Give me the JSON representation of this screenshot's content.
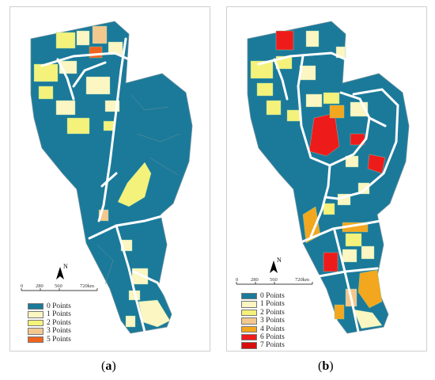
{
  "colors": {
    "c0": "#1b7a9a",
    "c1": "#fbf6c2",
    "c2": "#f4f27a",
    "c3": "#f2c88e",
    "c4": "#f2a71e",
    "c5": "#f0631c",
    "c6": "#ee1b1b",
    "c7": "#d70e0e",
    "road": "#ffffff",
    "outline": "#6d8f9c"
  },
  "panels": [
    {
      "caption_open": "(",
      "caption_letter": "a",
      "caption_close": ")",
      "scale_ticks": [
        "0",
        "280",
        "560",
        "720km"
      ],
      "north_label": "N",
      "legend": [
        {
          "label": "0 Points",
          "color": "#1b7a9a"
        },
        {
          "label": "1 Points",
          "color": "#fbf6c2"
        },
        {
          "label": "2 Points",
          "color": "#f4f27a"
        },
        {
          "label": "3 Points",
          "color": "#f2c88e"
        },
        {
          "label": "5 Points",
          "color": "#f0631c"
        }
      ]
    },
    {
      "caption_open": "(",
      "caption_letter": "b",
      "caption_close": ")",
      "scale_ticks": [
        "0",
        "280",
        "560",
        "720km"
      ],
      "north_label": "N",
      "legend": [
        {
          "label": "0 Points",
          "color": "#1b7a9a"
        },
        {
          "label": "1 Points",
          "color": "#fbf6c2"
        },
        {
          "label": "2 Points",
          "color": "#f4f27a"
        },
        {
          "label": "3 Points",
          "color": "#f2c88e"
        },
        {
          "label": "4 Points",
          "color": "#f2a71e"
        },
        {
          "label": "6 Points",
          "color": "#ee1b1b"
        },
        {
          "label": "7 Points",
          "color": "#d70e0e"
        }
      ]
    }
  ]
}
